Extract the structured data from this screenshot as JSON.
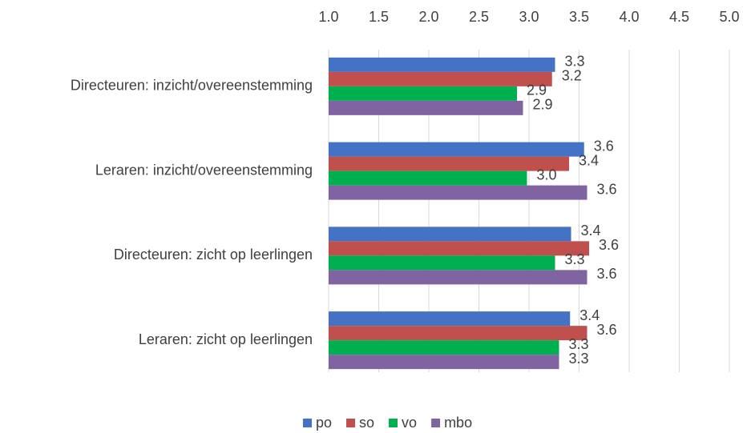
{
  "chart_data": {
    "type": "hbar",
    "categories": [
      "Directeuren: inzicht/overeenstemming",
      "Leraren: inzicht/overeenstemming",
      "Directeuren: zicht op leerlingen",
      "Leraren: zicht op leerlingen"
    ],
    "series": [
      {
        "name": "po",
        "color": "#4472c4",
        "values": [
          3.26,
          3.55,
          3.42,
          3.41
        ],
        "value_labels": [
          "3.3",
          "3.6",
          "3.4",
          "3.4"
        ]
      },
      {
        "name": "so",
        "color": "#c0504d",
        "values": [
          3.23,
          3.4,
          3.6,
          3.58
        ],
        "value_labels": [
          "3.2",
          "3.4",
          "3.6",
          "3.6"
        ]
      },
      {
        "name": "vo",
        "color": "#00b050",
        "values": [
          2.88,
          2.98,
          3.26,
          3.3
        ],
        "value_labels": [
          "2.9",
          "3.0",
          "3.3",
          "3.3"
        ]
      },
      {
        "name": "mbo",
        "color": "#8064a2",
        "values": [
          2.94,
          3.58,
          3.58,
          3.3
        ],
        "value_labels": [
          "2.9",
          "3.6",
          "3.6",
          "3.3"
        ]
      }
    ],
    "xlim": [
      1,
      5
    ],
    "xticks": [
      {
        "value": 1,
        "label": "1.0"
      },
      {
        "value": 1.5,
        "label": "1.5"
      },
      {
        "value": 2,
        "label": "2.0"
      },
      {
        "value": 2.5,
        "label": "2.5"
      },
      {
        "value": 3,
        "label": "3.0"
      },
      {
        "value": 3.5,
        "label": "3.5"
      },
      {
        "value": 4,
        "label": "4.0"
      },
      {
        "value": 4.5,
        "label": "4.5"
      },
      {
        "value": 5,
        "label": "5.0"
      }
    ],
    "grid": true,
    "legend": "bottom"
  }
}
